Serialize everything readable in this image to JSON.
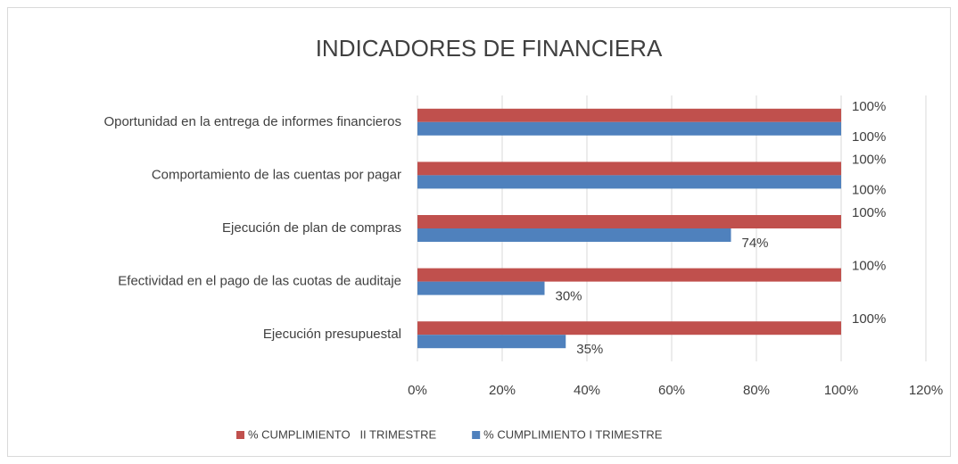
{
  "chart_data": {
    "type": "hbar",
    "title": "INDICADORES DE FINANCIERA",
    "categories": [
      "Oportunidad en la entrega de informes financieros",
      "Comportamiento de las cuentas por pagar",
      "Ejecución de plan de compras",
      "Efectividad en el pago de las cuotas de auditaje",
      "Ejecución presupuestal"
    ],
    "series": [
      {
        "name": "% CUMPLIMIENTO   II TRIMESTRE",
        "color": "#c0504d",
        "values": [
          100,
          100,
          100,
          100,
          100
        ],
        "value_labels": [
          "100%",
          "100%",
          "100%",
          "100%",
          "100%"
        ]
      },
      {
        "name": "% CUMPLIMIENTO I TRIMESTRE",
        "color": "#4f81bd",
        "values": [
          100,
          100,
          74,
          30,
          35
        ],
        "value_labels": [
          "100%",
          "100%",
          "74%",
          "30%",
          "35%"
        ]
      }
    ],
    "xlim": [
      0,
      120
    ],
    "xticks": [
      {
        "value": 0,
        "label": "0%"
      },
      {
        "value": 20,
        "label": "20%"
      },
      {
        "value": 40,
        "label": "40%"
      },
      {
        "value": 60,
        "label": "60%"
      },
      {
        "value": 80,
        "label": "80%"
      },
      {
        "value": 100,
        "label": "100%"
      },
      {
        "value": 120,
        "label": "120%"
      }
    ],
    "grid": true,
    "legend": "bottom"
  }
}
